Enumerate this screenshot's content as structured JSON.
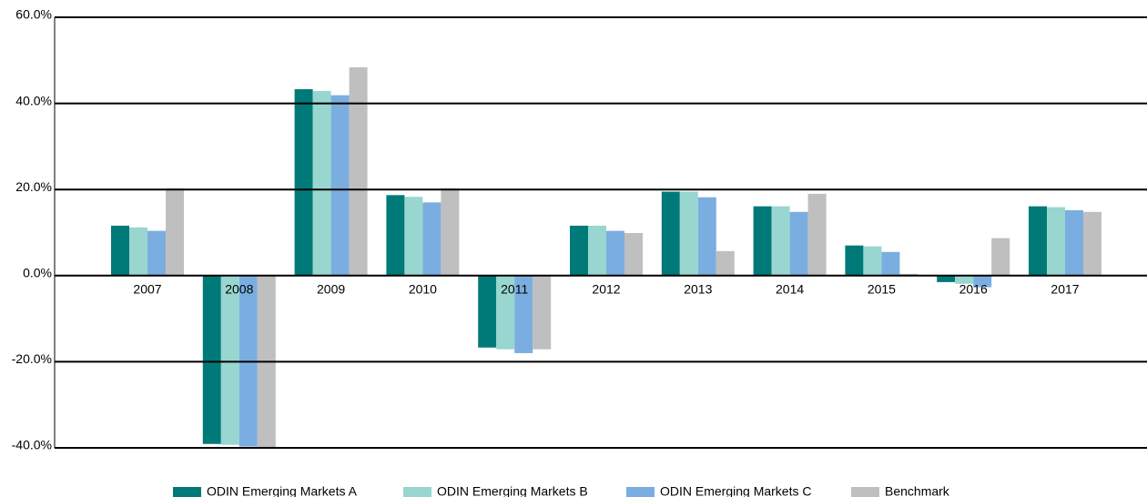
{
  "chart_data": {
    "type": "bar",
    "categories": [
      "2007",
      "2008",
      "2009",
      "2010",
      "2011",
      "2012",
      "2013",
      "2014",
      "2015",
      "2016",
      "2017"
    ],
    "series": [
      {
        "name": "ODIN Emerging Markets A",
        "color": "#007a78",
        "values": [
          11.6,
          -39.1,
          43.3,
          18.7,
          -16.7,
          11.6,
          19.5,
          16.1,
          7.0,
          -1.5,
          16.1
        ]
      },
      {
        "name": "ODIN Emerging Markets B",
        "color": "#99d6d0",
        "values": [
          11.2,
          -39.3,
          42.9,
          18.3,
          -17.1,
          11.6,
          19.5,
          16.1,
          6.8,
          -1.9,
          15.9
        ]
      },
      {
        "name": "ODIN Emerging Markets C",
        "color": "#7baee0",
        "values": [
          10.4,
          -39.7,
          41.9,
          17.0,
          -18.0,
          10.4,
          18.2,
          14.8,
          5.5,
          -2.7,
          15.2
        ]
      },
      {
        "name": "Benchmark",
        "color": "#bfbfbf",
        "values": [
          20.3,
          -39.9,
          48.4,
          20.3,
          -17.1,
          9.9,
          5.7,
          19.0,
          0.4,
          8.7,
          14.8
        ]
      }
    ],
    "ylim": [
      -40,
      60
    ],
    "yticks": [
      {
        "value": -40,
        "label": "-40.0%"
      },
      {
        "value": -20,
        "label": "-20.0%"
      },
      {
        "value": 0,
        "label": "0.0%"
      },
      {
        "value": 20,
        "label": "20.0%"
      },
      {
        "value": 40,
        "label": "40.0%"
      },
      {
        "value": 60,
        "label": "60.0%"
      }
    ],
    "grid": true,
    "legend": "bottom"
  }
}
